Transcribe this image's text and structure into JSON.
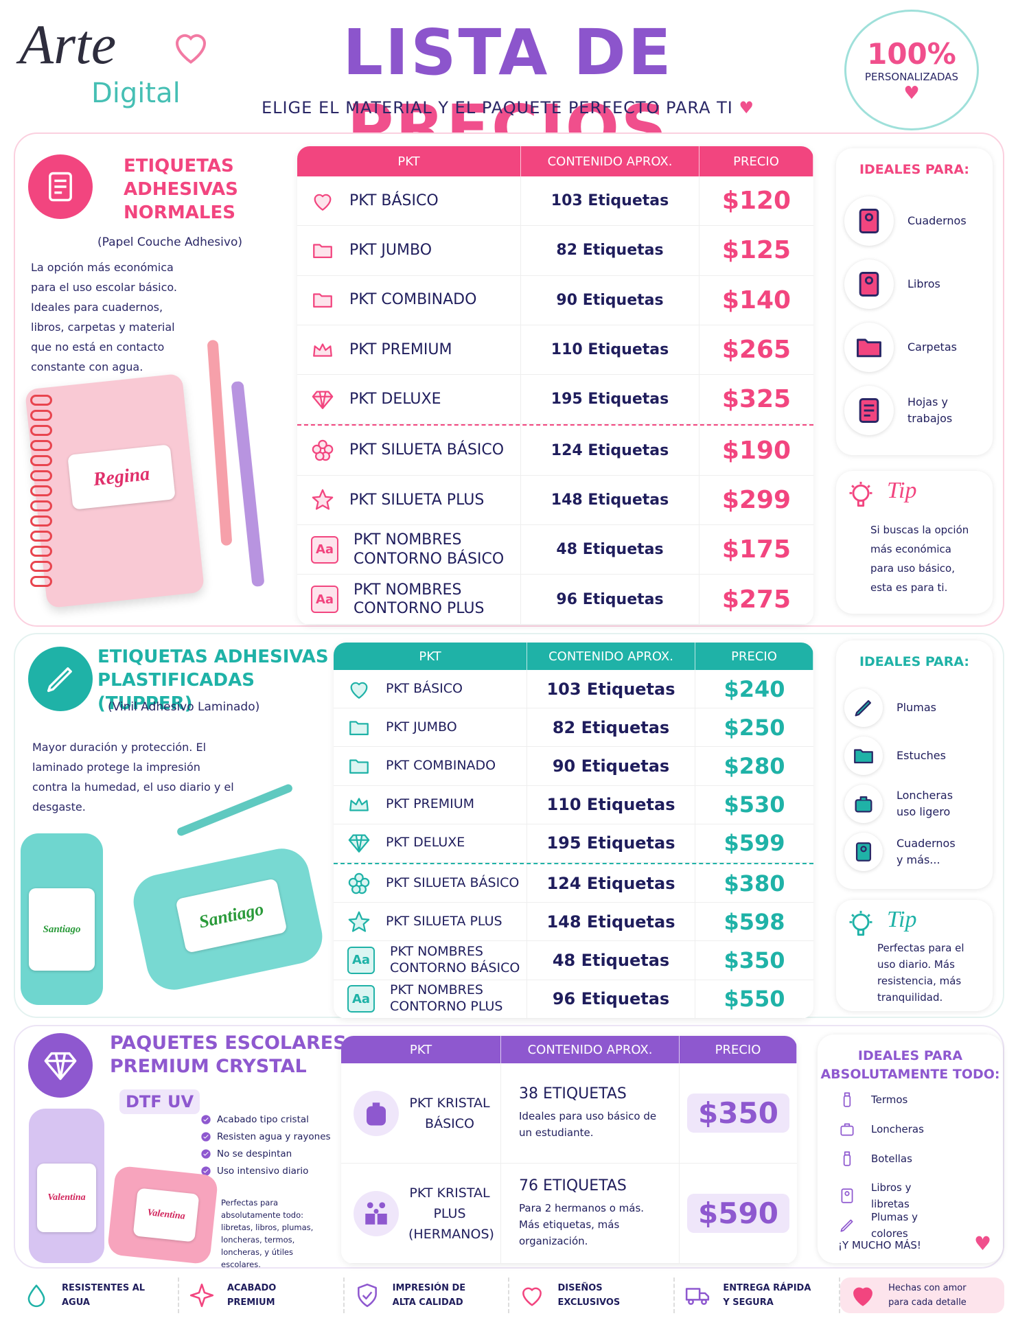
{
  "header": {
    "logo_script": "Arte",
    "logo_sub": "Digital",
    "title_part1": "LISTA DE",
    "title_part2": "PRECIOS",
    "subtitle": "ELIGE EL MATERIAL Y EL PAQUETE PERFECTO PARA TI",
    "badge_big": "100%",
    "badge_small": "PERSONALIZADAS"
  },
  "sections": [
    {
      "title": "ETIQUETAS ADHESIVAS NORMALES",
      "material": "(Papel Couche Adhesivo)",
      "description": "La opción más económica para el uso escolar básico. Ideales para cuadernos, libros, carpetas y material que no está en contacto constante con agua.",
      "sample_name": "Regina",
      "table_headers": [
        "PKT",
        "CONTENIDO APROX.",
        "PRECIO"
      ],
      "icon_label": "Aa",
      "rows": [
        [
          "PKT BÁSICO",
          "103 Etiquetas",
          "$120"
        ],
        [
          "PKT JUMBO",
          "82 Etiquetas",
          "$125"
        ],
        [
          "PKT COMBINADO",
          "90 Etiquetas",
          "$140"
        ],
        [
          "PKT PREMIUM",
          "110 Etiquetas",
          "$265"
        ],
        [
          "PKT DELUXE",
          "195 Etiquetas",
          "$325"
        ],
        [
          "PKT SILUETA BÁSICO",
          "124 Etiquetas",
          "$190"
        ],
        [
          "PKT SILUETA PLUS",
          "148 Etiquetas",
          "$299"
        ],
        [
          "PKT NOMBRES CONTORNO BÁSICO",
          "48 Etiquetas",
          "$175"
        ],
        [
          "PKT NOMBRES CONTORNO PLUS",
          "96 Etiquetas",
          "$275"
        ]
      ],
      "ideal_title": "IDEALES PARA:",
      "ideal_items": [
        "Cuadernos",
        "Libros",
        "Carpetas",
        "Hojas y trabajos"
      ],
      "tip_title": "Tip",
      "tip_text": "Si buscas la opción más económica para uso básico, esta es para ti."
    },
    {
      "title": "ETIQUETAS ADHESIVAS PLASTIFICADAS (TUPPER)",
      "material": "(Vinil Adhesivo Laminado)",
      "description": "Mayor duración y protección. El laminado protege la impresión contra la humedad, el uso diario y el desgaste.",
      "sample_name": "Santiago",
      "table_headers": [
        "PKT",
        "CONTENIDO APROX.",
        "PRECIO"
      ],
      "icon_label": "Aa",
      "rows": [
        [
          "PKT BÁSICO",
          "103 Etiquetas",
          "$240"
        ],
        [
          "PKT JUMBO",
          "82 Etiquetas",
          "$250"
        ],
        [
          "PKT COMBINADO",
          "90 Etiquetas",
          "$280"
        ],
        [
          "PKT PREMIUM",
          "110 Etiquetas",
          "$530"
        ],
        [
          "PKT DELUXE",
          "195 Etiquetas",
          "$599"
        ],
        [
          "PKT SILUETA BÁSICO",
          "124 Etiquetas",
          "$380"
        ],
        [
          "PKT SILUETA PLUS",
          "148 Etiquetas",
          "$598"
        ],
        [
          "PKT NOMBRES CONTORNO BÁSICO",
          "48 Etiquetas",
          "$350"
        ],
        [
          "PKT NOMBRES CONTORNO PLUS",
          "96 Etiquetas",
          "$550"
        ]
      ],
      "ideal_title": "IDEALES PARA:",
      "ideal_items": [
        "Plumas",
        "Estuches",
        "Loncheras uso ligero",
        "Cuadernos y más..."
      ],
      "tip_title": "Tip",
      "tip_text": "Perfectas para el uso diario. Más resistencia, más tranquilidad."
    },
    {
      "title": "PAQUETES ESCOLARES PREMIUM CRYSTAL",
      "badge": "DTF UV",
      "features": [
        "Acabado tipo cristal",
        "Resisten agua y rayones",
        "No se despintan",
        "Uso intensivo diario"
      ],
      "note": "Perfectas para absolutamente todo: libretas, libros, plumas, loncheras, termos, loncheras, y útiles escolares.",
      "sample_name": "Valentina",
      "table_headers": [
        "PKT",
        "CONTENIDO APROX.",
        "PRECIO"
      ],
      "rows": [
        {
          "name": "PKT KRISTAL BÁSICO",
          "content_title": "38 ETIQUETAS",
          "content_text": "Ideales para uso básico de un estudiante.",
          "price": "$350"
        },
        {
          "name": "PKT KRISTAL PLUS (HERMANOS)",
          "content_title": "76 ETIQUETAS",
          "content_text": "Para 2 hermanos o más. Más etiquetas, más organización.",
          "price": "$590"
        }
      ],
      "ideal_title": "IDEALES PARA ABSOLUTAMENTE TODO:",
      "ideal_items": [
        "Termos",
        "Loncheras",
        "Botellas",
        "Libros y libretas",
        "Plumas y colores"
      ],
      "ideal_extra": "¡Y MUCHO MÁS!"
    }
  ],
  "footer": [
    "RESISTENTES AL AGUA",
    "ACABADO PREMIUM",
    "IMPRESIÓN DE ALTA CALIDAD",
    "DISEÑOS EXCLUSIVOS",
    "ENTREGA RÁPIDA Y SEGURA",
    "Hechas con amor para cada detalle"
  ]
}
